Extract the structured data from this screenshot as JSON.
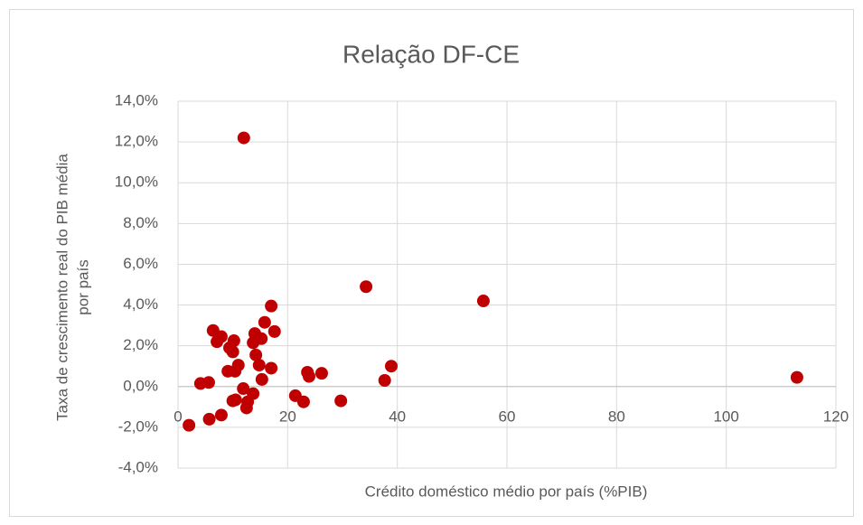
{
  "chart_data": {
    "type": "scatter",
    "title": "Relação DF-CE",
    "xlabel": "Crédito doméstico médio por país (%PIB)",
    "ylabel": [
      "Taxa de crescimento real do PIB média",
      "por país"
    ],
    "color": "#c00000",
    "grid": true,
    "xlim": [
      0,
      120
    ],
    "xticks": [
      0,
      20,
      40,
      60,
      80,
      100,
      120
    ],
    "ylim": [
      -4,
      14
    ],
    "yticks": [
      {
        "value": -4,
        "label": "-4,0%"
      },
      {
        "value": -2,
        "label": "-2,0%"
      },
      {
        "value": 0,
        "label": "0,0%"
      },
      {
        "value": 2,
        "label": "2,0%"
      },
      {
        "value": 4,
        "label": "4,0%"
      },
      {
        "value": 6,
        "label": "6,0%"
      },
      {
        "value": 8,
        "label": "8,0%"
      },
      {
        "value": 10,
        "label": "10,0%"
      },
      {
        "value": 12,
        "label": "12,0%"
      },
      {
        "value": 14,
        "label": "14,0%"
      }
    ],
    "x": [
      2.0,
      4.1,
      5.6,
      5.7,
      6.4,
      7.1,
      7.9,
      7.9,
      9.1,
      9.4,
      10.0,
      10.2,
      10.0,
      10.5,
      11.0,
      10.4,
      11.9,
      12.7,
      12.5,
      13.7,
      13.7,
      14.0,
      14.2,
      14.8,
      15.2,
      15.3,
      15.8,
      17.0,
      17.0,
      17.6,
      21.4,
      22.9,
      23.6,
      23.9,
      26.2,
      29.7,
      34.3,
      37.7,
      38.9,
      55.7,
      112.9,
      12.0
    ],
    "values": [
      -1.9,
      0.15,
      0.2,
      -1.6,
      2.75,
      2.2,
      2.45,
      -1.4,
      0.75,
      1.9,
      1.7,
      2.25,
      -0.7,
      -0.65,
      1.05,
      0.75,
      -0.1,
      -0.75,
      -1.05,
      -0.35,
      2.15,
      2.6,
      1.55,
      1.05,
      2.35,
      0.35,
      3.15,
      0.9,
      3.95,
      2.7,
      -0.45,
      -0.75,
      0.7,
      0.5,
      0.65,
      -0.7,
      4.9,
      0.3,
      1.0,
      4.2,
      0.45,
      12.2
    ]
  }
}
